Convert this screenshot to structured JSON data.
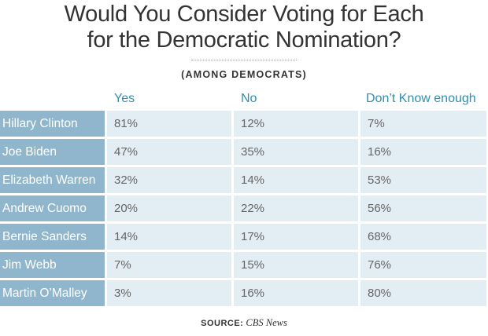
{
  "chart_data": {
    "type": "table",
    "title_lines": [
      "Would You Consider Voting for Each",
      "for the Democratic Nomination?"
    ],
    "subtitle": "(AMONG DEMOCRATS)",
    "columns": [
      "Yes",
      "No",
      "Don’t Know enough"
    ],
    "rows": [
      {
        "name": "Hillary Clinton",
        "values": [
          "81%",
          "12%",
          "7%"
        ]
      },
      {
        "name": "Joe Biden",
        "values": [
          "47%",
          "35%",
          "16%"
        ]
      },
      {
        "name": "Elizabeth Warren",
        "values": [
          "32%",
          "14%",
          "53%"
        ]
      },
      {
        "name": "Andrew Cuomo",
        "values": [
          "20%",
          "22%",
          "56%"
        ]
      },
      {
        "name": "Bernie Sanders",
        "values": [
          "14%",
          "17%",
          "68%"
        ]
      },
      {
        "name": "Jim Webb",
        "values": [
          "7%",
          "15%",
          "76%"
        ]
      },
      {
        "name": "Martin O’Malley",
        "values": [
          "3%",
          "16%",
          "80%"
        ]
      }
    ]
  },
  "source": {
    "label": "SOURCE:",
    "name": "CBS News"
  },
  "colors": {
    "header_text": "#2f8fb1",
    "name_bg": "#8fb6cc",
    "cell_bg": "#e3eef4"
  }
}
